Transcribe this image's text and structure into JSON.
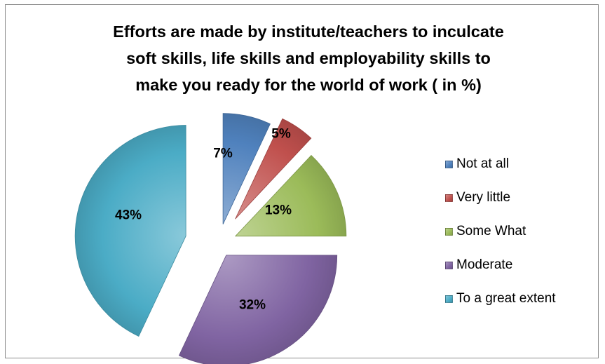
{
  "chart_data": {
    "type": "pie",
    "title": "Efforts are made by institute/teachers to inculcate soft skills, life skills and employability skills to make you ready for the world of work ( in %)",
    "title_lines": [
      "Efforts are made by institute/teachers to inculcate",
      "soft skills, life skills and employability skills to",
      "make you ready for the world of work ( in %)"
    ],
    "categories": [
      "Not at all",
      "Very little",
      "Some What",
      "Moderate",
      "To a great extent"
    ],
    "values": [
      7,
      5,
      13,
      32,
      43
    ],
    "data_labels": [
      "7%",
      "5%",
      "13%",
      "32%",
      "43%"
    ],
    "colors": [
      "#4f81bd",
      "#c0504d",
      "#9bbb59",
      "#8064a2",
      "#4bacc6"
    ],
    "exploded": true,
    "start_angle": "12 o'clock",
    "direction": "clockwise",
    "legend_position": "right"
  }
}
